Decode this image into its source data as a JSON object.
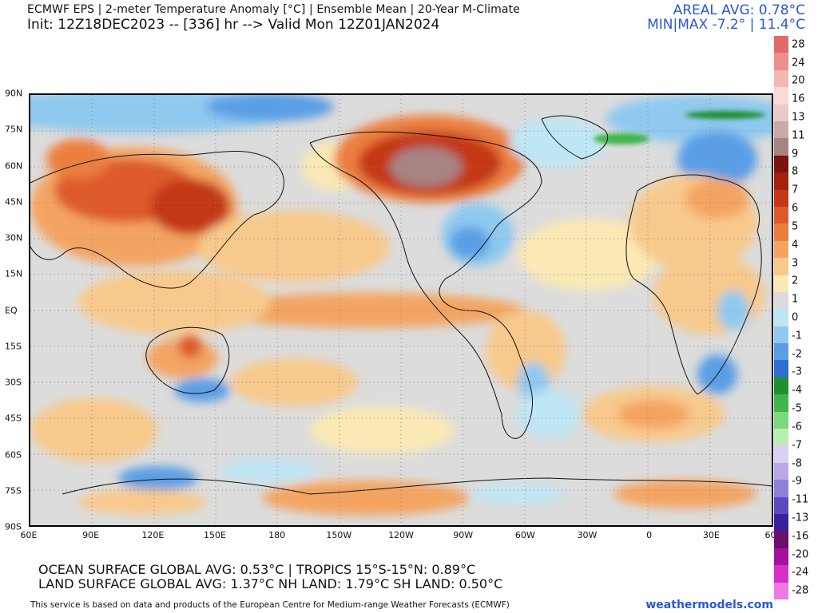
{
  "header": {
    "title": "ECMWF EPS | 2-meter Temperature Anomaly [°C] | Ensemble Mean | 20-Year M-Climate",
    "subtitle": "Init: 12Z18DEC2023 -- [336] hr --> Valid Mon 12Z01JAN2024",
    "areal_avg": "AREAL AVG: 0.78°C",
    "min_max": "MIN|MAX -7.2° | 11.4°C"
  },
  "map": {
    "lat_labels": [
      "90N",
      "75N",
      "60N",
      "45N",
      "30N",
      "15N",
      "EQ",
      "15S",
      "30S",
      "45S",
      "60S",
      "75S",
      "90S"
    ],
    "lon_labels": [
      "60E",
      "90E",
      "120E",
      "150E",
      "180",
      "150W",
      "120W",
      "90W",
      "60W",
      "30W",
      "0",
      "30E",
      "60E"
    ]
  },
  "colorbar": {
    "labels": [
      "28",
      "24",
      "20",
      "16",
      "13",
      "11",
      "9",
      "8",
      "7",
      "6",
      "5",
      "4",
      "3",
      "2",
      "1",
      "0",
      "-1",
      "-2",
      "-3",
      "-4",
      "-5",
      "-6",
      "-7",
      "-8",
      "-9",
      "-11",
      "-13",
      "-16",
      "-20",
      "-24",
      "-28"
    ],
    "colors": [
      "#e06a6a",
      "#eb8f8f",
      "#f5b6b6",
      "#fbd9d9",
      "#eac9c9",
      "#c9a9a9",
      "#a68484",
      "#7a1410",
      "#a3220f",
      "#c43718",
      "#de5a2b",
      "#ec7f3f",
      "#f4a462",
      "#f8c98c",
      "#fbe9b5",
      "#dcdcdc",
      "#bfe6f5",
      "#8fc9ef",
      "#5a9fe6",
      "#2d6fd0",
      "#1f8f2f",
      "#3fb64a",
      "#7cd87a",
      "#b8efb3",
      "#d9d0f2",
      "#b9a8ea",
      "#8f7fdb",
      "#5c49c0",
      "#38219a",
      "#6a0f6e",
      "#a3129c",
      "#d630c7",
      "#ee7ae3"
    ]
  },
  "stats": {
    "ocean": "OCEAN SURFACE GLOBAL AVG: 0.53°C  |  TROPICS 15°S-15°N:  0.89°C",
    "land": "LAND SURFACE GLOBAL AVG: 1.37°C NH LAND: 1.79°C SH LAND: 0.50°C"
  },
  "footer": {
    "disclaimer": "This service is based on data and products of the European Centre for Medium-range Weather Forecasts (ECMWF)",
    "brand": "weathermodels.com"
  }
}
